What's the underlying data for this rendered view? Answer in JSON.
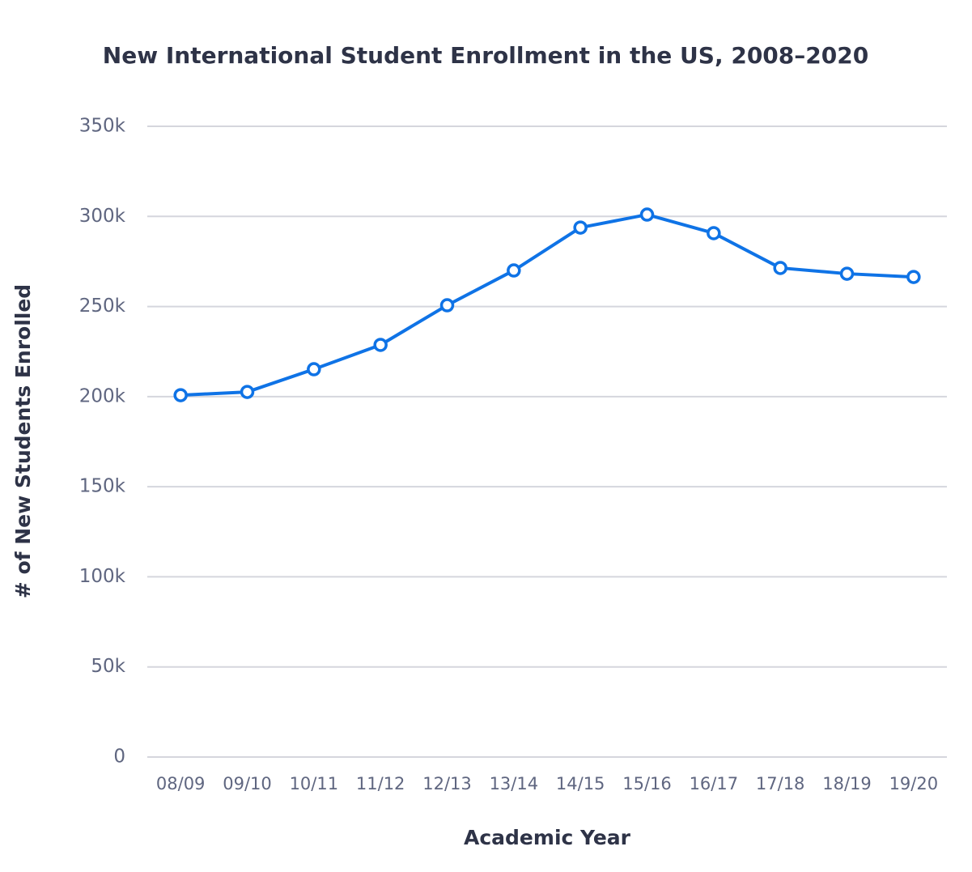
{
  "chart_data": {
    "type": "line",
    "title": "New International Student Enrollment in the US, 2008–2020",
    "x_label": "Academic Year",
    "y_label": "# of New Students Enrolled",
    "categories": [
      "08/09",
      "09/10",
      "10/11",
      "11/12",
      "12/13",
      "13/14",
      "14/15",
      "15/16",
      "16/17",
      "17/18",
      "18/19",
      "19/20"
    ],
    "values": [
      200800,
      202600,
      215200,
      228700,
      250700,
      270000,
      293800,
      301000,
      290700,
      271400,
      268200,
      266400
    ],
    "color": "#0f73e6",
    "ylim": [
      0,
      350000
    ],
    "yticks": [
      0,
      {
        "value": 50000,
        "label": "50k"
      },
      {
        "value": 100000,
        "label": "100k"
      },
      {
        "value": 150000,
        "label": "150k"
      },
      {
        "value": 200000,
        "label": "200k"
      },
      {
        "value": 250000,
        "label": "250k"
      },
      {
        "value": 300000,
        "label": "300k"
      },
      {
        "value": 350000,
        "label": "350k"
      }
    ],
    "grid": true
  }
}
